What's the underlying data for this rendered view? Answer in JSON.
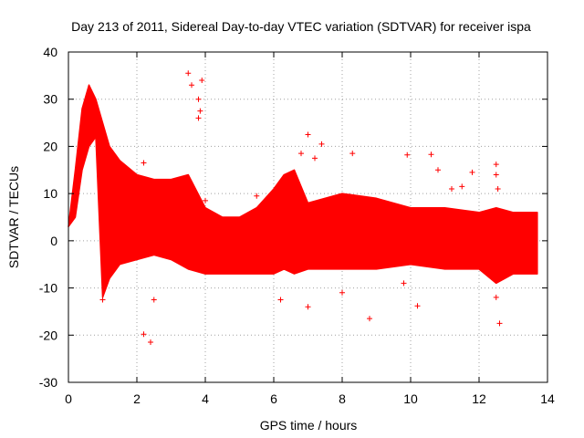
{
  "chart_data": {
    "type": "scatter",
    "title": "Day 213 of 2011, Sidereal Day-to-day VTEC variation (SDTVAR) for receiver ispa",
    "xlabel": "GPS time / hours",
    "ylabel": "SDTVAR / TECUs",
    "xlim": [
      0,
      14
    ],
    "ylim": [
      -30,
      40
    ],
    "xticks": [
      "0",
      "2",
      "4",
      "6",
      "8",
      "10",
      "12",
      "14"
    ],
    "yticks": [
      "40",
      "30",
      "20",
      "10",
      "0",
      "-10",
      "-20",
      "-30"
    ],
    "grid": true,
    "marker": "+",
    "series": [
      {
        "name": "SDTVAR",
        "color": "#ff0000",
        "envelope": {
          "x": [
            0.0,
            0.2,
            0.4,
            0.6,
            0.8,
            1.0,
            1.2,
            1.5,
            2.0,
            2.5,
            3.0,
            3.5,
            4.0,
            4.5,
            5.0,
            5.5,
            6.0,
            6.3,
            6.6,
            7.0,
            8.0,
            9.0,
            10.0,
            11.0,
            12.0,
            12.5,
            13.0,
            13.7
          ],
          "upper": [
            3,
            15,
            28,
            33,
            30,
            25,
            20,
            17,
            14,
            13,
            13,
            14,
            7,
            5,
            5,
            7,
            11,
            14,
            15,
            8,
            10,
            9,
            7,
            7,
            6,
            7,
            6,
            6
          ],
          "lower": [
            3,
            5,
            15,
            20,
            22,
            -12,
            -8,
            -5,
            -4,
            -3,
            -4,
            -6,
            -7,
            -7,
            -7,
            -7,
            -7,
            -6,
            -7,
            -6,
            -6,
            -6,
            -5,
            -6,
            -6,
            -9,
            -7,
            -7
          ]
        },
        "outliers": [
          {
            "x": 2.2,
            "y": 16.5
          },
          {
            "x": 2.2,
            "y": -19.8
          },
          {
            "x": 2.4,
            "y": -21.5
          },
          {
            "x": 2.5,
            "y": -12.5
          },
          {
            "x": 3.5,
            "y": 35.5
          },
          {
            "x": 3.6,
            "y": 33.0
          },
          {
            "x": 3.9,
            "y": 34.0
          },
          {
            "x": 3.8,
            "y": 30.0
          },
          {
            "x": 3.85,
            "y": 27.5
          },
          {
            "x": 3.8,
            "y": 26.0
          },
          {
            "x": 6.8,
            "y": 18.5
          },
          {
            "x": 7.0,
            "y": 22.5
          },
          {
            "x": 7.2,
            "y": 17.5
          },
          {
            "x": 7.4,
            "y": 20.5
          },
          {
            "x": 7.0,
            "y": -14.0
          },
          {
            "x": 6.2,
            "y": -12.5
          },
          {
            "x": 8.3,
            "y": 18.5
          },
          {
            "x": 8.8,
            "y": -16.5
          },
          {
            "x": 9.9,
            "y": 18.2
          },
          {
            "x": 10.2,
            "y": -13.8
          },
          {
            "x": 10.6,
            "y": 18.3
          },
          {
            "x": 10.8,
            "y": 15.0
          },
          {
            "x": 11.2,
            "y": 11.0
          },
          {
            "x": 11.5,
            "y": 11.5
          },
          {
            "x": 11.8,
            "y": 14.5
          },
          {
            "x": 12.5,
            "y": 16.2
          },
          {
            "x": 12.5,
            "y": 14.0
          },
          {
            "x": 12.55,
            "y": 11.0
          },
          {
            "x": 12.6,
            "y": -17.5
          },
          {
            "x": 12.5,
            "y": -12.0
          },
          {
            "x": 9.8,
            "y": -9.0
          },
          {
            "x": 8.0,
            "y": -11.0
          },
          {
            "x": 1.0,
            "y": -12.5
          },
          {
            "x": 5.5,
            "y": 9.5
          },
          {
            "x": 4.0,
            "y": 8.5
          }
        ]
      }
    ]
  }
}
